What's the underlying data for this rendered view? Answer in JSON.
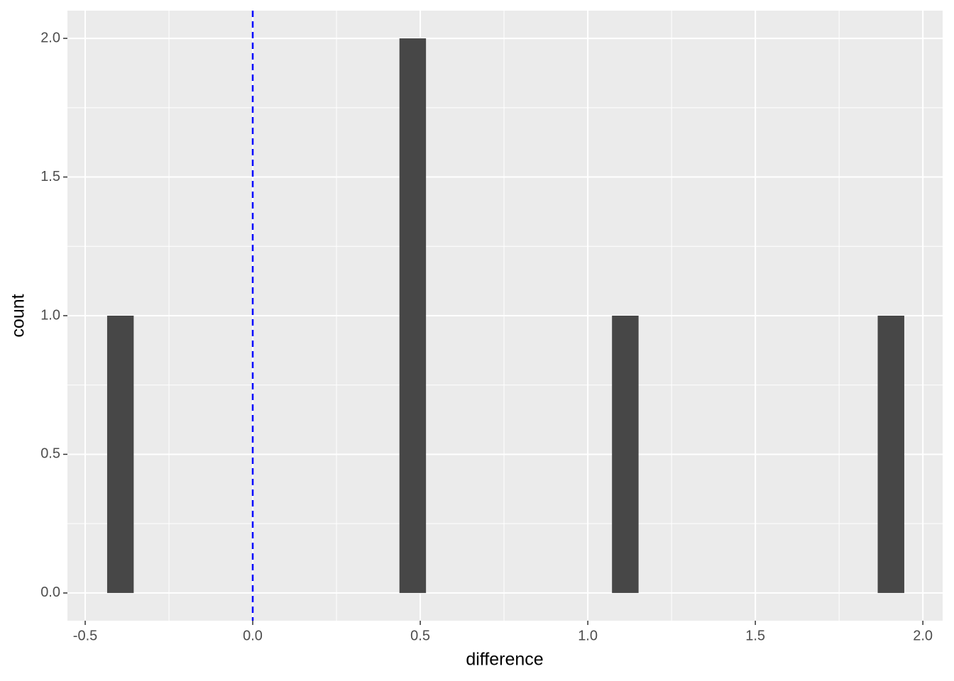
{
  "chart_data": {
    "type": "histogram",
    "x_label": "difference",
    "y_label": "count",
    "bins": [
      -0.4345,
      -0.3552,
      -0.2759,
      -0.1966,
      -0.1173,
      -0.038,
      0.0413,
      0.1206,
      0.1999,
      0.2792,
      0.3585,
      0.4378,
      0.5171,
      0.5964,
      0.6757,
      0.755,
      0.8343,
      0.9136,
      0.9929,
      1.0722,
      1.1515,
      1.2308,
      1.3101,
      1.3894,
      1.4687,
      1.548,
      1.6273,
      1.7066,
      1.7859,
      1.8652,
      1.9445
    ],
    "values": [
      1,
      0,
      0,
      0,
      0,
      0,
      0,
      0,
      0,
      0,
      0,
      2,
      0,
      0,
      0,
      0,
      0,
      0,
      0,
      1,
      0,
      0,
      0,
      0,
      0,
      0,
      0,
      0,
      0,
      1
    ],
    "color": "#474747",
    "xlim": [
      -0.553,
      2.059
    ],
    "xticks": [
      -0.5,
      {
        "value": 0,
        "label": "0.0"
      },
      0.5,
      {
        "value": 1,
        "label": "1.0"
      },
      1.5,
      {
        "value": 2,
        "label": "2.0"
      }
    ],
    "ylim": [
      -0.1,
      2.1
    ],
    "yticks": [
      {
        "value": 0,
        "label": "0.0"
      },
      0.5,
      {
        "value": 1,
        "label": "1.0"
      },
      1.5,
      {
        "value": 2,
        "label": "2.0"
      }
    ],
    "grid": true,
    "vline": {
      "x": 0,
      "color": "#0000ff"
    }
  }
}
